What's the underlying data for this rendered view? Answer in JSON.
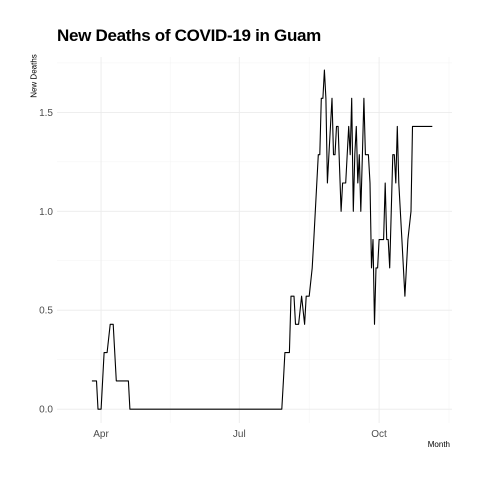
{
  "chart_data": {
    "type": "line",
    "title": "New Deaths of COVID-19 in Guam",
    "xlabel": "Month",
    "ylabel": "New Deaths",
    "x_ticks": [
      {
        "label": "Apr",
        "day": 26
      },
      {
        "label": "Jul",
        "day": 117
      },
      {
        "label": "Oct",
        "day": 209
      }
    ],
    "y_ticks": [
      {
        "label": "0.0",
        "value": 0.0
      },
      {
        "label": "0.5",
        "value": 0.5
      },
      {
        "label": "1.0",
        "value": 1.0
      },
      {
        "label": "1.5",
        "value": 1.5
      }
    ],
    "xlim_day": [
      -3,
      257
    ],
    "ylim": [
      -0.07,
      1.78
    ],
    "grid": true,
    "line_color": "#000000",
    "series": [
      {
        "x_day": [
          20,
          23,
          24,
          25,
          26,
          28,
          29,
          30,
          32,
          33,
          34,
          36,
          37,
          38,
          44,
          45,
          145,
          146,
          147,
          149,
          150,
          151,
          153,
          154,
          155,
          156,
          158,
          160,
          161,
          163,
          165,
          166,
          167,
          168,
          169,
          170,
          171,
          172,
          173,
          174,
          175,
          176,
          178,
          179,
          180,
          181,
          182,
          184,
          185,
          186,
          187,
          189,
          190,
          191,
          192,
          193,
          194,
          195,
          196,
          197,
          198,
          199,
          200,
          202,
          203,
          204,
          205,
          206,
          207,
          208,
          209,
          210,
          211,
          212,
          213,
          214,
          215,
          216,
          218,
          219,
          220,
          221,
          222,
          224,
          226,
          227,
          228,
          230,
          231,
          233,
          234,
          235,
          236,
          240,
          242,
          243,
          244
        ],
        "y": [
          0.143,
          0.143,
          0.0,
          0.0,
          0.0,
          0.286,
          0.286,
          0.286,
          0.429,
          0.429,
          0.429,
          0.143,
          0.143,
          0.143,
          0.143,
          0.0,
          0.0,
          0.143,
          0.286,
          0.286,
          0.286,
          0.571,
          0.571,
          0.429,
          0.429,
          0.429,
          0.571,
          0.429,
          0.571,
          0.571,
          0.714,
          0.857,
          1.0,
          1.143,
          1.286,
          1.286,
          1.571,
          1.571,
          1.714,
          1.571,
          1.143,
          1.286,
          1.571,
          1.286,
          1.286,
          1.429,
          1.429,
          1.0,
          1.143,
          1.143,
          1.143,
          1.429,
          1.286,
          1.571,
          1.0,
          1.286,
          1.429,
          1.143,
          1.286,
          1.0,
          1.286,
          1.571,
          1.286,
          1.286,
          1.143,
          0.714,
          0.857,
          0.429,
          0.714,
          0.714,
          0.857,
          0.857,
          0.857,
          0.857,
          1.143,
          0.857,
          0.857,
          0.714,
          1.286,
          1.286,
          1.143,
          1.429,
          1.143,
          0.857,
          0.571,
          0.714,
          0.857,
          1.0,
          1.429,
          1.429,
          1.429,
          1.429,
          1.429,
          1.429,
          1.429,
          1.429,
          1.429
        ]
      }
    ]
  }
}
